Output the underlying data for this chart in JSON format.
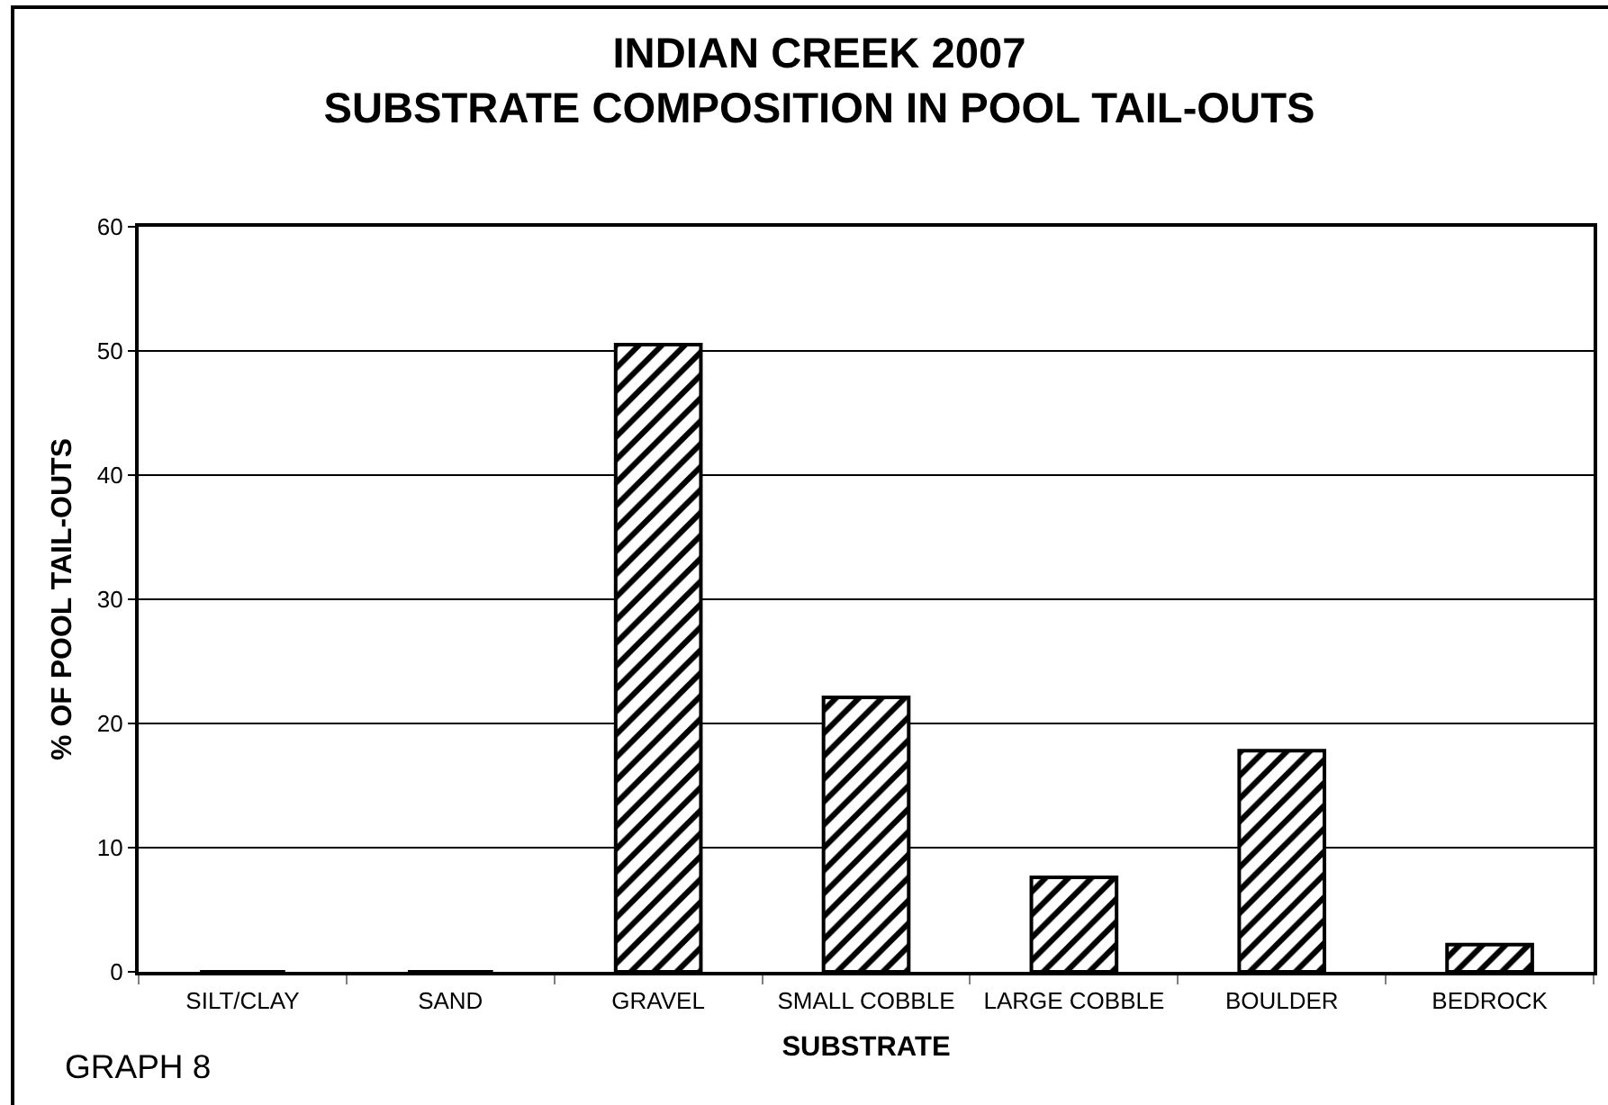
{
  "chart_data": {
    "type": "bar",
    "title": "INDIAN CREEK 2007\nSUBSTRATE COMPOSITION IN POOL TAIL-OUTS",
    "xlabel": "SUBSTRATE",
    "ylabel": "% OF POOL TAIL-OUTS",
    "annotations": [
      "GRAPH 8"
    ],
    "categories": [
      "SILT/CLAY",
      "SAND",
      "GRAVEL",
      "SMALL COBBLE",
      "LARGE COBBLE",
      "BOULDER",
      "BEDROCK"
    ],
    "values": [
      0,
      0,
      50.5,
      22.1,
      7.6,
      17.8,
      2.2
    ],
    "color": "#000000",
    "ylim": [
      0,
      60
    ],
    "yticks": [
      0,
      10,
      20,
      30,
      40,
      50,
      60
    ],
    "grid": "y"
  }
}
